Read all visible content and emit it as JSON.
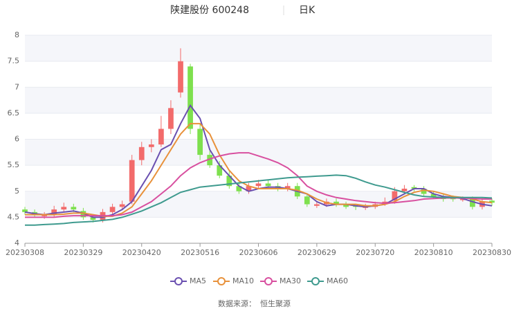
{
  "chart_data": {
    "type": "candlestick",
    "title": "陕建股份 600248",
    "subtitle": "日K",
    "source_label": "数据来源：",
    "source": "恒生聚源",
    "categories": [
      "20230308",
      null,
      null,
      null,
      null,
      null,
      "20230329",
      null,
      null,
      null,
      null,
      null,
      "20230420",
      null,
      null,
      null,
      null,
      null,
      "20230516",
      null,
      null,
      null,
      null,
      null,
      "20230606",
      null,
      null,
      null,
      null,
      null,
      "20230629",
      null,
      null,
      null,
      null,
      null,
      "20230720",
      null,
      null,
      null,
      null,
      null,
      "20230810",
      null,
      null,
      null,
      null,
      null,
      "20230830"
    ],
    "open": [
      4.65,
      4.6,
      4.52,
      4.55,
      4.65,
      4.7,
      4.62,
      4.5,
      4.45,
      4.6,
      4.7,
      4.8,
      5.6,
      5.85,
      5.9,
      6.2,
      6.9,
      7.4,
      6.2,
      5.7,
      5.5,
      5.3,
      5.1,
      5.0,
      5.1,
      5.15,
      5.1,
      5.05,
      5.1,
      4.9,
      4.72,
      4.75,
      4.8,
      4.75,
      4.72,
      4.68,
      4.7,
      4.75,
      4.82,
      5.0,
      5.08,
      5.05,
      4.95,
      4.9,
      4.86,
      4.83,
      4.85,
      4.7,
      4.82
    ],
    "close": [
      4.6,
      4.55,
      4.55,
      4.65,
      4.7,
      4.65,
      4.5,
      4.45,
      4.6,
      4.7,
      4.75,
      5.6,
      5.85,
      5.9,
      6.2,
      6.6,
      7.5,
      6.2,
      5.7,
      5.5,
      5.3,
      5.1,
      5.0,
      5.1,
      5.15,
      5.1,
      5.05,
      5.1,
      4.9,
      4.75,
      4.75,
      4.8,
      4.75,
      4.7,
      4.7,
      4.7,
      4.75,
      4.8,
      5.0,
      5.05,
      5.05,
      4.95,
      4.9,
      4.85,
      4.85,
      4.85,
      4.7,
      4.8,
      4.78
    ],
    "high": [
      4.7,
      4.65,
      4.6,
      4.72,
      4.78,
      4.76,
      4.68,
      4.56,
      4.66,
      4.76,
      4.82,
      5.7,
      5.95,
      6.0,
      6.45,
      6.75,
      7.75,
      7.45,
      6.3,
      5.78,
      5.58,
      5.38,
      5.18,
      5.16,
      5.22,
      5.22,
      5.16,
      5.16,
      5.16,
      4.96,
      4.8,
      4.86,
      4.86,
      4.8,
      4.76,
      4.76,
      4.8,
      4.88,
      5.08,
      5.12,
      5.12,
      5.1,
      5.0,
      4.95,
      4.92,
      4.9,
      4.9,
      4.88,
      4.86
    ],
    "low": [
      4.55,
      4.5,
      4.47,
      4.5,
      4.6,
      4.6,
      4.45,
      4.4,
      4.4,
      4.55,
      4.65,
      4.75,
      5.5,
      5.75,
      5.85,
      6.1,
      6.8,
      6.1,
      5.6,
      5.45,
      5.25,
      5.05,
      4.95,
      4.95,
      5.05,
      5.05,
      5.0,
      5.0,
      4.85,
      4.7,
      4.68,
      4.7,
      4.7,
      4.66,
      4.64,
      4.64,
      4.66,
      4.72,
      4.76,
      4.95,
      5.0,
      4.9,
      4.85,
      4.8,
      4.8,
      4.8,
      4.65,
      4.65,
      4.72
    ],
    "up_color": "#f26b6b",
    "down_color": "#7ee04e",
    "series": [
      {
        "name": "MA5",
        "color": "#6a4fb0",
        "values": [
          4.6,
          4.57,
          4.55,
          4.58,
          4.6,
          4.62,
          4.58,
          4.5,
          4.5,
          4.55,
          4.65,
          4.8,
          5.1,
          5.4,
          5.8,
          5.9,
          6.3,
          6.65,
          6.4,
          5.8,
          5.5,
          5.3,
          5.1,
          5.0,
          5.05,
          5.08,
          5.08,
          5.05,
          5.0,
          4.95,
          4.8,
          4.72,
          4.75,
          4.75,
          4.72,
          4.7,
          4.72,
          4.75,
          4.85,
          4.95,
          5.05,
          5.05,
          4.95,
          4.9,
          4.88,
          4.86,
          4.8,
          4.75,
          4.72
        ]
      },
      {
        "name": "MA10",
        "color": "#e8913a",
        "values": [
          4.55,
          4.55,
          4.55,
          4.55,
          4.56,
          4.58,
          4.58,
          4.55,
          4.52,
          4.52,
          4.58,
          4.7,
          4.95,
          5.2,
          5.5,
          5.8,
          6.1,
          6.3,
          6.3,
          6.1,
          5.7,
          5.4,
          5.2,
          5.1,
          5.05,
          5.05,
          5.05,
          5.05,
          5.02,
          4.95,
          4.85,
          4.78,
          4.75,
          4.75,
          4.75,
          4.72,
          4.72,
          4.75,
          4.8,
          4.9,
          4.98,
          5.02,
          5.0,
          4.95,
          4.9,
          4.88,
          4.85,
          4.8,
          4.78
        ]
      },
      {
        "name": "MA30",
        "color": "#d84f9f",
        "values": [
          4.5,
          4.5,
          4.5,
          4.5,
          4.52,
          4.53,
          4.53,
          4.53,
          4.53,
          4.53,
          4.55,
          4.6,
          4.7,
          4.8,
          4.95,
          5.1,
          5.3,
          5.45,
          5.55,
          5.62,
          5.68,
          5.72,
          5.74,
          5.74,
          5.68,
          5.62,
          5.55,
          5.45,
          5.3,
          5.1,
          5.0,
          4.93,
          4.88,
          4.85,
          4.82,
          4.8,
          4.78,
          4.77,
          4.78,
          4.8,
          4.82,
          4.85,
          4.86,
          4.87,
          4.87,
          4.87,
          4.86,
          4.85,
          4.85
        ]
      },
      {
        "name": "MA60",
        "color": "#3e9a8e",
        "values": [
          4.35,
          4.35,
          4.36,
          4.37,
          4.38,
          4.4,
          4.41,
          4.42,
          4.44,
          4.46,
          4.5,
          4.56,
          4.62,
          4.7,
          4.78,
          4.88,
          4.98,
          5.03,
          5.08,
          5.1,
          5.12,
          5.14,
          5.16,
          5.18,
          5.2,
          5.22,
          5.24,
          5.26,
          5.27,
          5.28,
          5.29,
          5.3,
          5.31,
          5.3,
          5.25,
          5.18,
          5.12,
          5.08,
          5.03,
          4.98,
          4.93,
          4.9,
          4.89,
          4.88,
          4.88,
          4.88,
          4.88,
          4.88,
          4.87
        ]
      }
    ],
    "ylim": [
      4,
      8
    ],
    "yticks": [
      4,
      4.5,
      5,
      5.5,
      6,
      6.5,
      7,
      7.5,
      8
    ],
    "grid": true
  }
}
